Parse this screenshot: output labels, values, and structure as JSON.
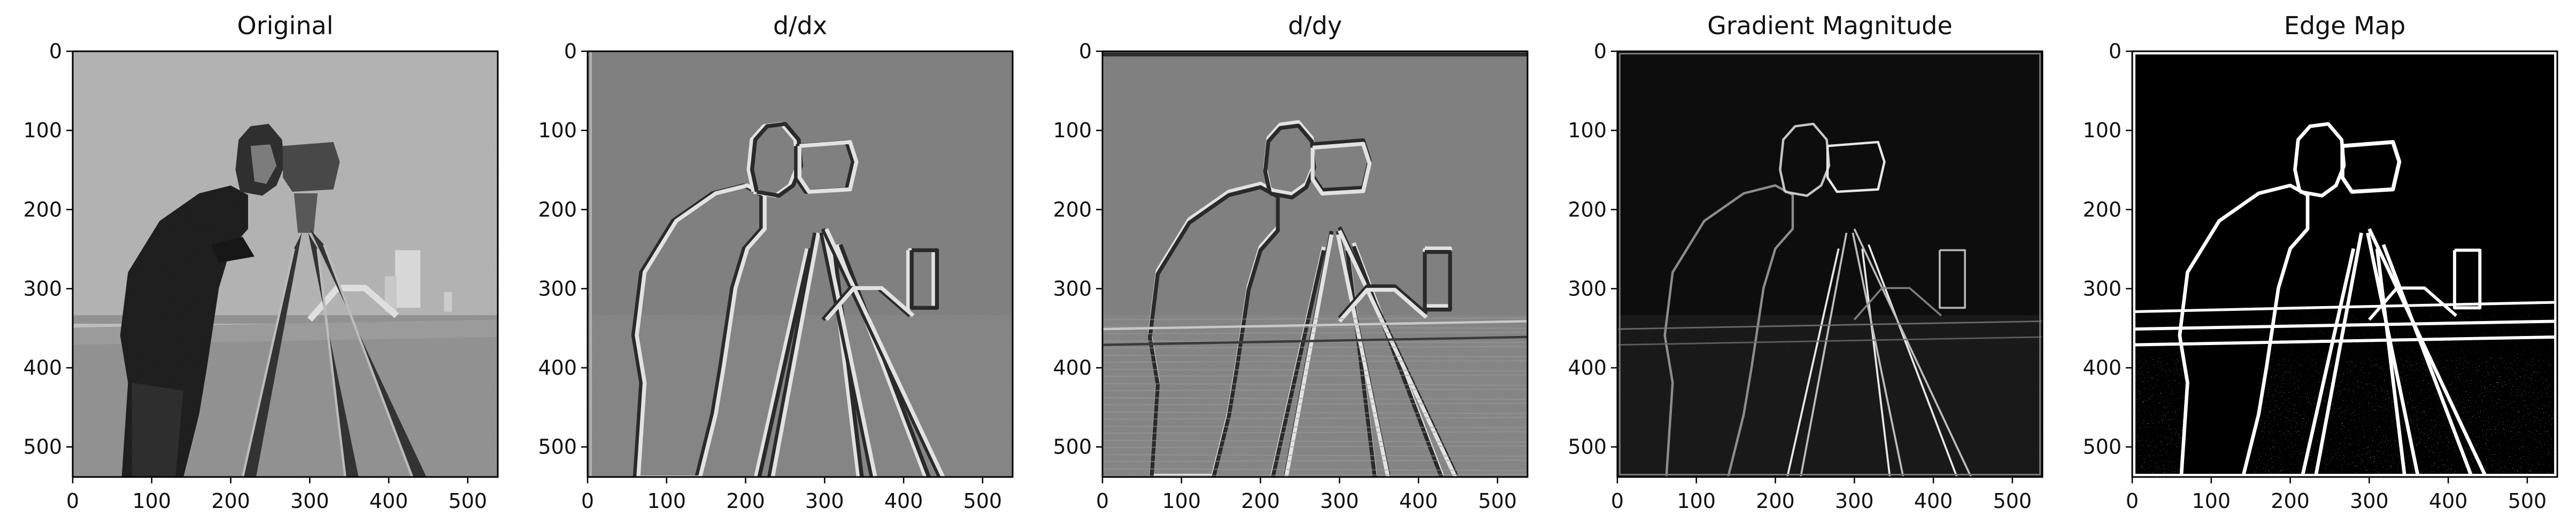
{
  "figure": {
    "panels": [
      {
        "title": "Original",
        "style": "original"
      },
      {
        "title": "d/dx",
        "style": "dx"
      },
      {
        "title": "d/dy",
        "style": "dy"
      },
      {
        "title": "Gradient Magnitude",
        "style": "magnitude"
      },
      {
        "title": "Edge Map",
        "style": "edges"
      }
    ],
    "x_ticks": [
      "0",
      "100",
      "200",
      "300",
      "400",
      "500"
    ],
    "y_ticks": [
      "0",
      "100",
      "200",
      "300",
      "400",
      "500"
    ],
    "axis_range": {
      "x": [
        0,
        538
      ],
      "y": [
        0,
        538
      ]
    },
    "colors": {
      "background": "#ffffff",
      "axes": "#000000",
      "original_sky": "#a6a6a6",
      "original_grass": "#8c8c8c",
      "derivative_gray": "#808080",
      "magnitude_bg": "#0d0d0d",
      "edge_bg": "#000000",
      "edge_fg": "#ffffff"
    },
    "colormap": "gray"
  }
}
